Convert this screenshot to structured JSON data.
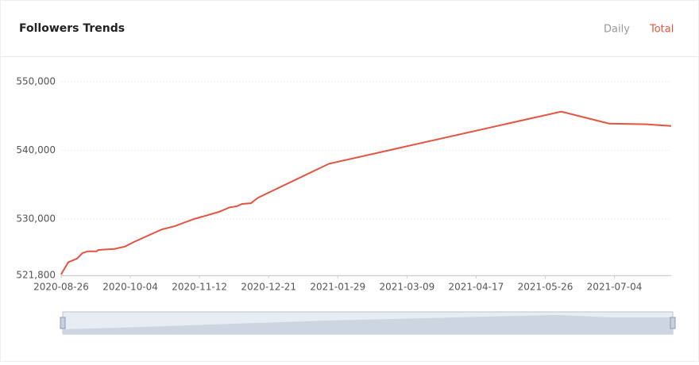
{
  "tabs": [
    "Daily",
    "Total"
  ],
  "chart_data": {
    "type": "line",
    "title": "Followers Trends",
    "x": [
      "2020-08-26",
      "2020-08-27",
      "2020-08-30",
      "2020-09-04",
      "2020-09-07",
      "2020-09-10",
      "2020-09-15",
      "2020-09-16",
      "2020-09-25",
      "2020-10-01",
      "2020-10-06",
      "2020-10-18",
      "2020-10-22",
      "2020-10-29",
      "2020-11-09",
      "2020-11-23",
      "2020-11-29",
      "2020-12-03",
      "2020-12-06",
      "2020-12-11",
      "2020-12-15",
      "2021-01-24",
      "2021-06-04",
      "2021-07-01",
      "2021-07-22",
      "2021-08-05"
    ],
    "series": [
      {
        "name": "Total",
        "color": "#e5533f",
        "values": [
          521900,
          522400,
          523700,
          524250,
          525050,
          525300,
          525300,
          525500,
          525650,
          526000,
          526650,
          528050,
          528500,
          528950,
          530000,
          531050,
          531700,
          531850,
          532200,
          532300,
          533100,
          538050,
          545650,
          543900,
          543800,
          543550
        ]
      }
    ],
    "xlim": [
      "2020-08-26",
      "2021-08-05"
    ],
    "xticks": [
      "2020-08-26",
      "2020-10-04",
      "2020-11-12",
      "2020-12-21",
      "2021-01-29",
      "2021-03-09",
      "2021-04-17",
      "2021-05-26",
      "2021-07-04"
    ],
    "ylim": [
      521800,
      550000
    ],
    "yticks": [
      {
        "value": 521800,
        "label": "521,800"
      },
      {
        "value": 530000,
        "label": "530,000"
      },
      {
        "value": 540000,
        "label": "540,000"
      },
      {
        "value": 550000,
        "label": "550,000"
      }
    ],
    "grid": true
  }
}
